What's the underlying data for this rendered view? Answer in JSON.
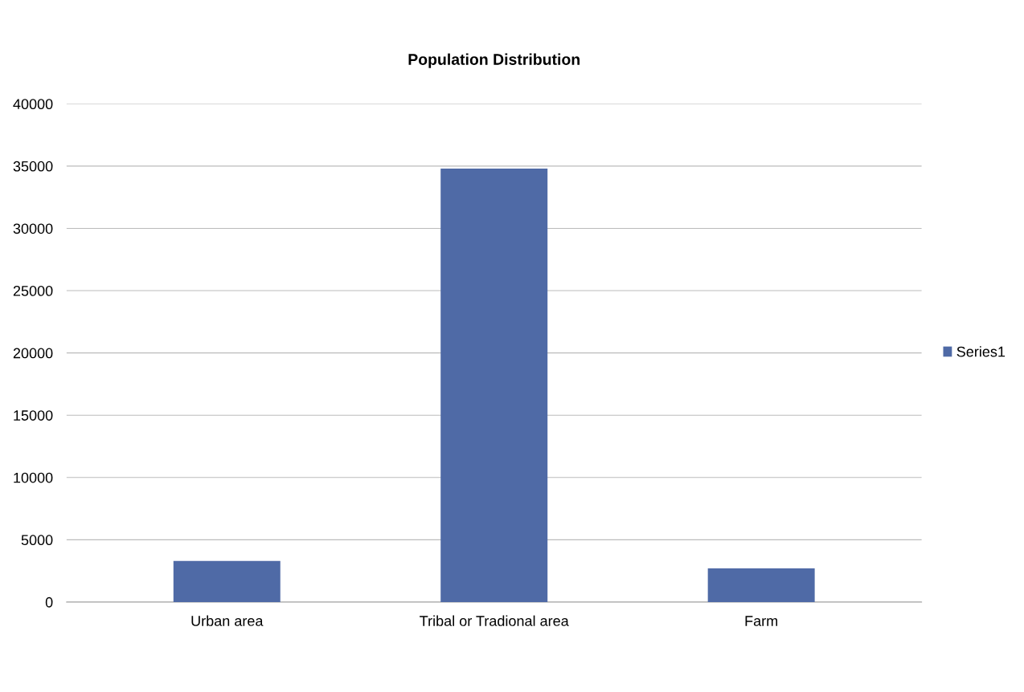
{
  "chart_data": {
    "type": "bar",
    "title": "Population Distribution",
    "categories": [
      "Urban area",
      "Tribal or Tradional area",
      "Farm"
    ],
    "series": [
      {
        "name": "Series1",
        "color": "#4f6aa6",
        "values": [
          3300,
          34800,
          2700
        ]
      }
    ],
    "ylim": [
      0,
      40000
    ],
    "yticks": [
      0,
      5000,
      10000,
      15000,
      20000,
      25000,
      30000,
      35000,
      40000
    ],
    "grid": "y",
    "legend": "right"
  }
}
